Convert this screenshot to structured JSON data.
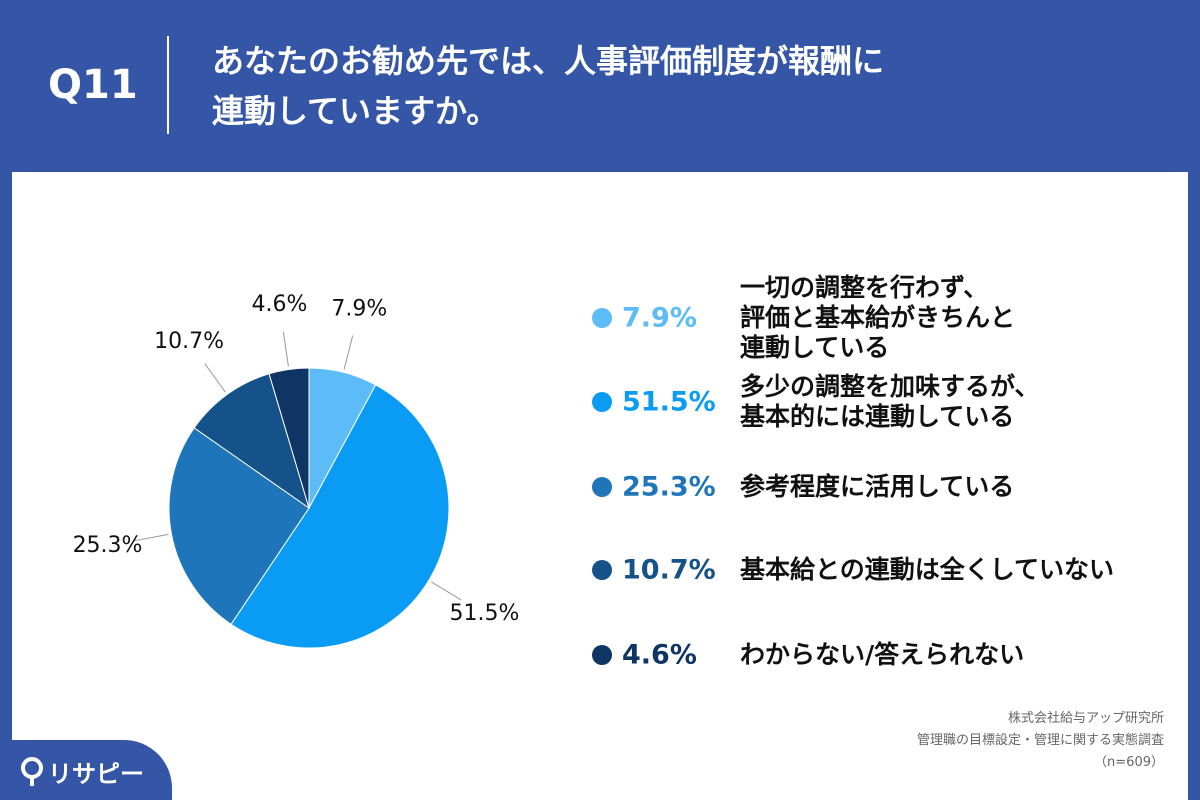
{
  "header": {
    "badge": "Q11",
    "title": "あなたのお勧め先では、人事評価制度が報酬に\n連動していますか。"
  },
  "chart_data": {
    "type": "pie",
    "categories": [
      "一切の調整を行わず、\n評価と基本給がきちんと\n連動している",
      "多少の調整を加味するが、\n基本的には連動している",
      "参考程度に活用している",
      "基本給との連動は全くしていない",
      "わからない/答えられない"
    ],
    "values": [
      7.9,
      51.5,
      25.3,
      10.7,
      4.6
    ],
    "value_labels": [
      "7.9%",
      "51.5%",
      "25.3%",
      "10.7%",
      "4.6%"
    ],
    "colors": [
      "#5bbcf8",
      "#0a9cf5",
      "#1f75b9",
      "#15528a",
      "#0e3563"
    ]
  },
  "source": {
    "lines": [
      "株式会社給与アップ研究所",
      "管理職の目標設定・管理に関する実態調査",
      "（n=609）"
    ]
  },
  "logo": "リサピー"
}
